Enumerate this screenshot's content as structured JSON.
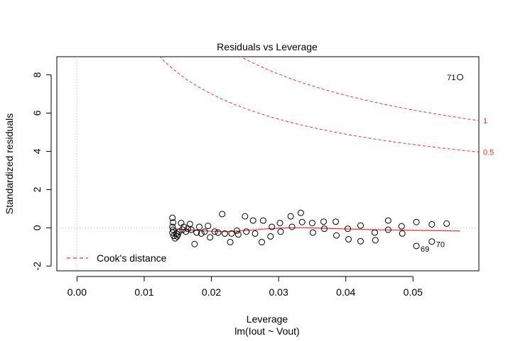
{
  "chart_data": {
    "type": "scatter",
    "title": "Residuals vs Leverage",
    "xlabel": "Leverage",
    "subtitle": "lm(Iout ~ Vout)",
    "ylabel": "Standardized residuals",
    "xlim": [
      -0.003,
      0.0598
    ],
    "ylim": [
      -2.25,
      8.95
    ],
    "x_ticks": [
      0.0,
      0.01,
      0.02,
      0.03,
      0.04,
      0.05
    ],
    "x_tick_labels": [
      "0.00",
      "0.01",
      "0.02",
      "0.03",
      "0.04",
      "0.05"
    ],
    "y_ticks": [
      -2,
      0,
      2,
      4,
      6,
      8
    ],
    "y_tick_labels": [
      "-2",
      "0",
      "2",
      "4",
      "6",
      "8"
    ],
    "legend": {
      "label": "Cook's distance",
      "position": "bottom-left"
    },
    "cook_levels": [
      {
        "level": 0.5,
        "label": "0.5"
      },
      {
        "level": 1,
        "label": "1"
      }
    ],
    "n_params": 2,
    "points": [
      {
        "x": 0.0142,
        "y": 0.52
      },
      {
        "x": 0.0143,
        "y": 0.28
      },
      {
        "x": 0.0142,
        "y": 0.05
      },
      {
        "x": 0.0143,
        "y": -0.1
      },
      {
        "x": 0.0142,
        "y": -0.25
      },
      {
        "x": 0.0144,
        "y": -0.42
      },
      {
        "x": 0.0146,
        "y": -0.55
      },
      {
        "x": 0.0148,
        "y": -0.3
      },
      {
        "x": 0.0149,
        "y": -0.45
      },
      {
        "x": 0.015,
        "y": -0.35
      },
      {
        "x": 0.0152,
        "y": -0.2
      },
      {
        "x": 0.0155,
        "y": 0.25
      },
      {
        "x": 0.0157,
        "y": -0.1
      },
      {
        "x": 0.0159,
        "y": 0.05
      },
      {
        "x": 0.0162,
        "y": -0.2
      },
      {
        "x": 0.0165,
        "y": -0.05
      },
      {
        "x": 0.0168,
        "y": 0.2
      },
      {
        "x": 0.017,
        "y": -0.1
      },
      {
        "x": 0.0175,
        "y": -0.85
      },
      {
        "x": 0.0178,
        "y": -0.25
      },
      {
        "x": 0.0182,
        "y": 0.05
      },
      {
        "x": 0.0185,
        "y": -0.3
      },
      {
        "x": 0.019,
        "y": -0.2
      },
      {
        "x": 0.0195,
        "y": 0.1
      },
      {
        "x": 0.0198,
        "y": -0.5
      },
      {
        "x": 0.0205,
        "y": -0.2
      },
      {
        "x": 0.021,
        "y": -0.25
      },
      {
        "x": 0.0216,
        "y": 0.72
      },
      {
        "x": 0.022,
        "y": -0.3
      },
      {
        "x": 0.0228,
        "y": -0.75
      },
      {
        "x": 0.023,
        "y": -0.3
      },
      {
        "x": 0.0238,
        "y": -0.15
      },
      {
        "x": 0.024,
        "y": -0.35
      },
      {
        "x": 0.025,
        "y": 0.6
      },
      {
        "x": 0.0252,
        "y": -0.2
      },
      {
        "x": 0.0262,
        "y": 0.38
      },
      {
        "x": 0.0265,
        "y": -0.3
      },
      {
        "x": 0.0275,
        "y": -0.75
      },
      {
        "x": 0.0277,
        "y": 0.38
      },
      {
        "x": 0.0288,
        "y": -0.45
      },
      {
        "x": 0.029,
        "y": 0.05
      },
      {
        "x": 0.0302,
        "y": 0.25
      },
      {
        "x": 0.0303,
        "y": -0.2
      },
      {
        "x": 0.0318,
        "y": 0.6
      },
      {
        "x": 0.032,
        "y": 0.05
      },
      {
        "x": 0.0333,
        "y": 0.78
      },
      {
        "x": 0.0335,
        "y": 0.3
      },
      {
        "x": 0.035,
        "y": 0.25
      },
      {
        "x": 0.0351,
        "y": -0.25
      },
      {
        "x": 0.0367,
        "y": 0.32
      },
      {
        "x": 0.0368,
        "y": -0.05
      },
      {
        "x": 0.0385,
        "y": 0.32
      },
      {
        "x": 0.0386,
        "y": -0.4
      },
      {
        "x": 0.0403,
        "y": -0.05
      },
      {
        "x": 0.0404,
        "y": -0.6
      },
      {
        "x": 0.0422,
        "y": 0.12
      },
      {
        "x": 0.0422,
        "y": -0.7
      },
      {
        "x": 0.0443,
        "y": -0.25
      },
      {
        "x": 0.0444,
        "y": -0.65
      },
      {
        "x": 0.0463,
        "y": 0.38
      },
      {
        "x": 0.0463,
        "y": -0.1
      },
      {
        "x": 0.0483,
        "y": 0.08
      },
      {
        "x": 0.0484,
        "y": -0.3
      },
      {
        "x": 0.0505,
        "y": 0.3
      },
      {
        "x": 0.0528,
        "y": 0.18
      },
      {
        "x": 0.055,
        "y": 0.22
      },
      {
        "x": 0.0505,
        "y": -0.95,
        "label": "69"
      },
      {
        "x": 0.0528,
        "y": -0.72,
        "label": "70"
      },
      {
        "x": 0.057,
        "y": 7.88,
        "label": "71"
      }
    ],
    "smooth_line": [
      {
        "x": 0.0142,
        "y": -0.05
      },
      {
        "x": 0.016,
        "y": -0.1
      },
      {
        "x": 0.018,
        "y": -0.14
      },
      {
        "x": 0.02,
        "y": -0.18
      },
      {
        "x": 0.022,
        "y": -0.2
      },
      {
        "x": 0.024,
        "y": -0.17
      },
      {
        "x": 0.026,
        "y": -0.12
      },
      {
        "x": 0.028,
        "y": -0.06
      },
      {
        "x": 0.03,
        "y": -0.02
      },
      {
        "x": 0.032,
        "y": 0.0
      },
      {
        "x": 0.034,
        "y": 0.0
      },
      {
        "x": 0.036,
        "y": -0.02
      },
      {
        "x": 0.038,
        "y": -0.04
      },
      {
        "x": 0.04,
        "y": -0.06
      },
      {
        "x": 0.042,
        "y": -0.08
      },
      {
        "x": 0.044,
        "y": -0.1
      },
      {
        "x": 0.046,
        "y": -0.11
      },
      {
        "x": 0.048,
        "y": -0.12
      },
      {
        "x": 0.05,
        "y": -0.13
      },
      {
        "x": 0.052,
        "y": -0.14
      },
      {
        "x": 0.054,
        "y": -0.15
      },
      {
        "x": 0.057,
        "y": -0.17
      }
    ],
    "colors": {
      "points": "#000000",
      "smooth": "#ff2a2a",
      "cook": "#ff2a2a",
      "reference": "#bdbdbd"
    }
  }
}
